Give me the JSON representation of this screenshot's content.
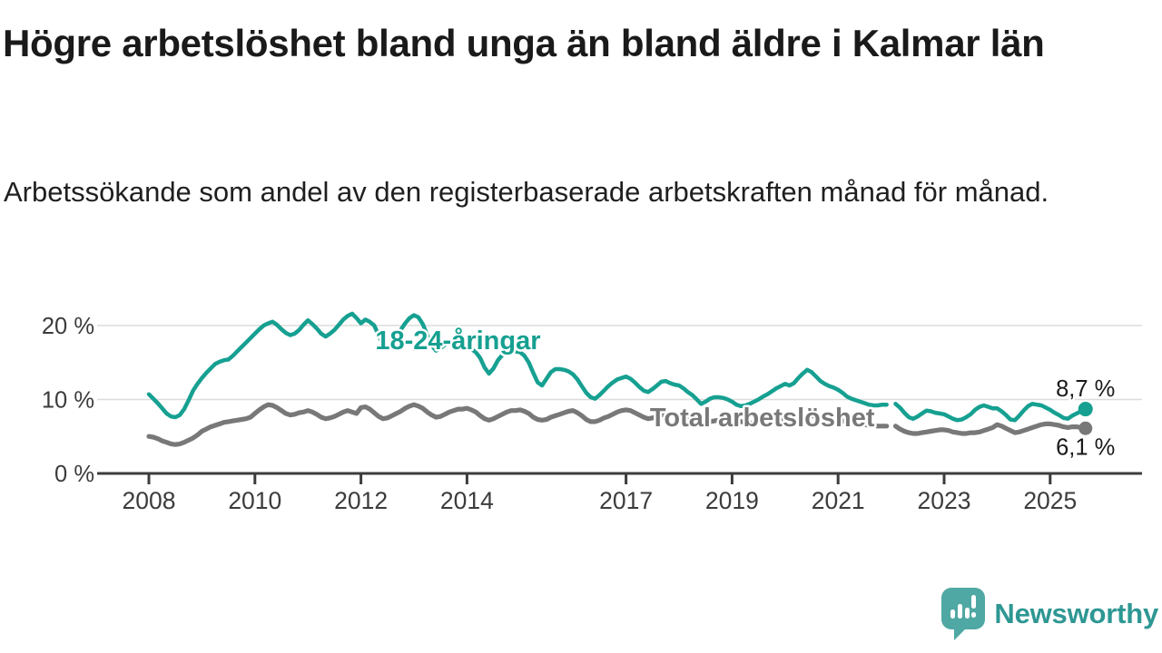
{
  "header": {
    "title": "Högre arbetslöshet bland unga än bland äldre i Kalmar län",
    "subtitle": "Arbetssökande som andel av den registerbaserade arbetskraften månad för månad."
  },
  "colors": {
    "young_series": "#16a091",
    "total_series": "#787878",
    "grid": "#dcdcdc",
    "axis": "#3c3c3c",
    "tick_text": "#3c3c3c",
    "end_label_text": "#1a1a1a",
    "logo_icon": "#4fa8a3",
    "logo_text": "#2e9793"
  },
  "chart_data": {
    "type": "line",
    "title": "Högre arbetslöshet bland unga än bland äldre i Kalmar län",
    "subtitle": "Arbetssökande som andel av den registerbaserade arbetskraften månad för månad.",
    "unit": "%",
    "x_axis": {
      "start": "2008-01",
      "end": "2025-09",
      "frequency": "monthly",
      "tick_years": [
        2008,
        2010,
        2012,
        2014,
        2017,
        2019,
        2021,
        2023,
        2025
      ],
      "xlim_years": [
        2007.03,
        2026.74
      ]
    },
    "y_axis": {
      "ticks": [
        {
          "value": 0,
          "label": "0 %"
        },
        {
          "value": 10,
          "label": "10 %"
        },
        {
          "value": 20,
          "label": "20 %"
        }
      ],
      "gridline_values": [
        10,
        20
      ],
      "ylim": [
        0,
        23.5
      ]
    },
    "series": [
      {
        "name": "18-24-åringar",
        "color": "#16a091",
        "end_value_label": "8,7 %",
        "end_value": 8.7,
        "label_anchor": {
          "year": 2012.27,
          "value": 16.8
        },
        "break_note": "gap at 2022-01",
        "values": [
          10.7,
          10.1,
          9.5,
          8.8,
          8.1,
          7.7,
          7.6,
          7.9,
          8.7,
          9.9,
          11.2,
          12.1,
          12.9,
          13.6,
          14.2,
          14.8,
          15.1,
          15.3,
          15.4,
          15.9,
          16.5,
          17.1,
          17.7,
          18.3,
          18.9,
          19.5,
          20.0,
          20.3,
          20.5,
          20.1,
          19.5,
          19.0,
          18.7,
          18.9,
          19.4,
          20.1,
          20.7,
          20.2,
          19.6,
          18.9,
          18.5,
          18.9,
          19.4,
          20.1,
          20.8,
          21.3,
          21.6,
          21.0,
          20.3,
          20.8,
          20.5,
          20.0,
          18.7,
          17.3,
          16.9,
          17.5,
          18.4,
          19.4,
          20.3,
          21.0,
          21.4,
          21.1,
          20.2,
          18.7,
          17.3,
          16.6,
          16.9,
          17.4,
          17.8,
          17.6,
          17.2,
          16.9,
          17.1,
          16.8,
          16.4,
          15.6,
          14.3,
          13.5,
          14.2,
          15.3,
          16.0,
          16.3,
          16.4,
          16.5,
          16.4,
          15.9,
          15.0,
          13.6,
          12.3,
          11.9,
          12.8,
          13.7,
          14.1,
          14.1,
          14.0,
          13.8,
          13.4,
          12.7,
          11.8,
          10.9,
          10.3,
          10.1,
          10.6,
          11.2,
          11.8,
          12.3,
          12.7,
          12.9,
          13.1,
          12.8,
          12.3,
          11.7,
          11.2,
          11.0,
          11.4,
          11.9,
          12.4,
          12.5,
          12.2,
          12.0,
          11.9,
          11.5,
          11.0,
          10.6,
          10.0,
          9.4,
          9.7,
          10.1,
          10.3,
          10.3,
          10.2,
          10.0,
          9.7,
          9.3,
          9.1,
          9.2,
          9.4,
          9.7,
          10.0,
          10.4,
          10.7,
          11.1,
          11.5,
          11.8,
          12.1,
          11.9,
          12.2,
          12.9,
          13.5,
          14.0,
          13.7,
          13.1,
          12.5,
          12.1,
          11.8,
          11.6,
          11.3,
          10.9,
          10.4,
          10.1,
          9.9,
          9.7,
          9.5,
          9.3,
          9.2,
          9.2,
          9.3,
          9.3,
          null,
          9.4,
          8.9,
          8.2,
          7.6,
          7.4,
          7.7,
          8.1,
          8.5,
          8.4,
          8.2,
          8.1,
          8.0,
          7.7,
          7.4,
          7.2,
          7.3,
          7.6,
          8.0,
          8.6,
          9.0,
          9.2,
          9.0,
          8.8,
          8.8,
          8.4,
          7.9,
          7.3,
          7.2,
          7.8,
          8.5,
          9.1,
          9.4,
          9.3,
          9.2,
          8.9,
          8.6,
          8.2,
          7.9,
          7.5,
          7.4,
          7.8,
          8.1,
          8.4,
          8.7
        ]
      },
      {
        "name": "Total arbetslöshet",
        "color": "#787878",
        "end_value_label": "6,1 %",
        "end_value": 6.1,
        "label_anchor": {
          "year": 2017.45,
          "value": 6.4
        },
        "break_note": "gap at 2022-01",
        "values": [
          5.0,
          4.9,
          4.7,
          4.4,
          4.2,
          4.0,
          3.9,
          4.0,
          4.2,
          4.5,
          4.8,
          5.2,
          5.7,
          6.0,
          6.3,
          6.5,
          6.7,
          6.9,
          7.0,
          7.1,
          7.2,
          7.3,
          7.4,
          7.6,
          8.1,
          8.6,
          9.0,
          9.3,
          9.2,
          8.9,
          8.5,
          8.1,
          7.9,
          8.0,
          8.2,
          8.3,
          8.5,
          8.3,
          8.0,
          7.6,
          7.4,
          7.5,
          7.7,
          8.0,
          8.3,
          8.5,
          8.3,
          8.1,
          8.9,
          9.0,
          8.7,
          8.2,
          7.7,
          7.4,
          7.5,
          7.8,
          8.1,
          8.4,
          8.8,
          9.1,
          9.3,
          9.1,
          8.8,
          8.3,
          7.9,
          7.6,
          7.7,
          8.0,
          8.3,
          8.5,
          8.7,
          8.7,
          8.8,
          8.6,
          8.3,
          7.8,
          7.4,
          7.2,
          7.4,
          7.7,
          8.0,
          8.3,
          8.5,
          8.5,
          8.6,
          8.4,
          8.1,
          7.6,
          7.3,
          7.2,
          7.3,
          7.6,
          7.8,
          8.0,
          8.2,
          8.4,
          8.5,
          8.2,
          7.8,
          7.3,
          7.0,
          7.0,
          7.2,
          7.5,
          7.7,
          8.0,
          8.3,
          8.5,
          8.6,
          8.5,
          8.2,
          7.9,
          7.6,
          7.4,
          7.5,
          7.7,
          7.9,
          8.0,
          8.0,
          7.9,
          7.8,
          7.6,
          7.4,
          7.1,
          6.9,
          6.8,
          6.9,
          7.0,
          7.1,
          7.2,
          7.3,
          7.3,
          7.3,
          7.2,
          7.0,
          6.9,
          6.8,
          6.8,
          6.9,
          7.0,
          7.1,
          7.2,
          7.3,
          7.4,
          7.4,
          7.3,
          7.4,
          7.6,
          7.7,
          7.8,
          7.8,
          7.7,
          7.6,
          7.4,
          7.3,
          7.2,
          7.2,
          7.1,
          7.0,
          6.9,
          6.8,
          6.7,
          6.6,
          6.5,
          6.5,
          6.4,
          6.4,
          6.4,
          null,
          6.4,
          6.0,
          5.7,
          5.5,
          5.4,
          5.4,
          5.5,
          5.6,
          5.7,
          5.8,
          5.9,
          5.9,
          5.8,
          5.6,
          5.5,
          5.4,
          5.4,
          5.5,
          5.5,
          5.6,
          5.8,
          6.0,
          6.2,
          6.6,
          6.4,
          6.1,
          5.8,
          5.5,
          5.6,
          5.8,
          6.0,
          6.2,
          6.4,
          6.6,
          6.7,
          6.7,
          6.6,
          6.5,
          6.3,
          6.2,
          6.3,
          6.3,
          6.2,
          6.1
        ]
      }
    ],
    "legend_position": "inline-labels",
    "grid": "horizontal-only"
  },
  "footer": {
    "brand": "Newsworthy",
    "logo_icon": "speech-bubble-bar-chart-exclamation"
  }
}
